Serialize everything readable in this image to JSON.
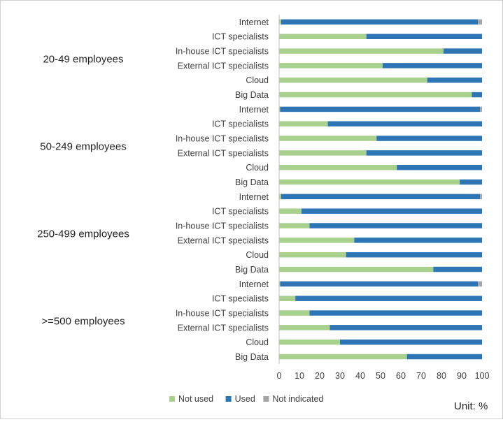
{
  "unit_label": "Unit: %",
  "chart_data": {
    "type": "bar",
    "orientation": "horizontal",
    "stacked": true,
    "xlim": [
      0,
      100
    ],
    "x_ticks": [
      0,
      10,
      20,
      30,
      40,
      50,
      60,
      70,
      80,
      90,
      100
    ],
    "grid": false,
    "legend_position": "bottom",
    "colors": {
      "Not used": "#a9d18e",
      "Used": "#2e75b6",
      "Not indicated": "#a5a5a5"
    },
    "series_names": [
      "Not used",
      "Used",
      "Not indicated"
    ],
    "groups": [
      {
        "label": "20-49 employees",
        "bars": [
          {
            "label": "Internet",
            "values": [
              1,
              97,
              2
            ]
          },
          {
            "label": "ICT specialists",
            "values": [
              43,
              57,
              0
            ]
          },
          {
            "label": "In-house ICT specialists",
            "values": [
              81,
              19,
              0
            ]
          },
          {
            "label": "External ICT specialists",
            "values": [
              51,
              49,
              0
            ]
          },
          {
            "label": "Cloud",
            "values": [
              73,
              27,
              0
            ]
          },
          {
            "label": "Big Data",
            "values": [
              95,
              5,
              0
            ]
          }
        ]
      },
      {
        "label": "50-249 employees",
        "bars": [
          {
            "label": "Internet",
            "values": [
              0.5,
              98.5,
              1
            ]
          },
          {
            "label": "ICT specialists",
            "values": [
              24,
              76,
              0
            ]
          },
          {
            "label": "In-house ICT specialists",
            "values": [
              48,
              52,
              0
            ]
          },
          {
            "label": "External ICT specialists",
            "values": [
              43,
              57,
              0
            ]
          },
          {
            "label": "Cloud",
            "values": [
              58,
              42,
              0
            ]
          },
          {
            "label": "Big Data",
            "values": [
              89,
              11,
              0
            ]
          }
        ]
      },
      {
        "label": "250-499 employees",
        "bars": [
          {
            "label": "Internet",
            "values": [
              1,
              98,
              1
            ]
          },
          {
            "label": "ICT specialists",
            "values": [
              11,
              89,
              0
            ]
          },
          {
            "label": "In-house ICT specialists",
            "values": [
              15,
              85,
              0
            ]
          },
          {
            "label": "External ICT specialists",
            "values": [
              37,
              63,
              0
            ]
          },
          {
            "label": "Cloud",
            "values": [
              33,
              67,
              0
            ]
          },
          {
            "label": "Big Data",
            "values": [
              76,
              24,
              0
            ]
          }
        ]
      },
      {
        "label": ">=500 employees",
        "bars": [
          {
            "label": "Internet",
            "values": [
              0.5,
              97.5,
              2
            ]
          },
          {
            "label": "ICT specialists",
            "values": [
              8,
              92,
              0
            ]
          },
          {
            "label": "In-house ICT specialists",
            "values": [
              15,
              85,
              0
            ]
          },
          {
            "label": "External ICT specialists",
            "values": [
              25,
              75,
              0
            ]
          },
          {
            "label": "Cloud",
            "values": [
              30,
              70,
              0
            ]
          },
          {
            "label": "Big Data",
            "values": [
              63,
              37,
              0
            ]
          }
        ]
      }
    ]
  }
}
